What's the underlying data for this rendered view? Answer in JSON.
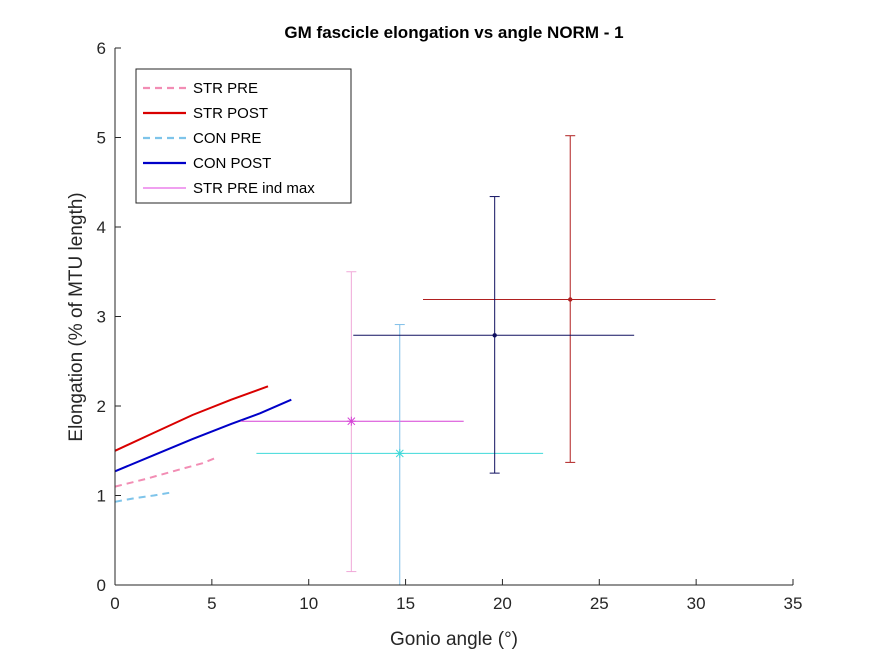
{
  "chart_data": {
    "type": "line",
    "title": "GM fascicle elongation vs angle NORM - 1",
    "xlabel": "Gonio angle (°)",
    "ylabel": "Elongation (% of MTU length)",
    "xlim": [
      0,
      35
    ],
    "ylim": [
      0,
      6
    ],
    "xticks": [
      "0",
      "5",
      "10",
      "15",
      "20",
      "25",
      "30",
      "35"
    ],
    "yticks": [
      "0",
      "1",
      "2",
      "3",
      "4",
      "5",
      "6"
    ],
    "grid": false,
    "legend_position": "top-left",
    "series": [
      {
        "name": "STR PRE",
        "color": "#f28db4",
        "dash": "dashed",
        "x": [
          0,
          1.5,
          3,
          4.5,
          5.2
        ],
        "y": [
          1.1,
          1.18,
          1.27,
          1.36,
          1.42
        ]
      },
      {
        "name": "STR POST",
        "color": "#d90000",
        "dash": "solid",
        "x": [
          0,
          2,
          4,
          6,
          7.9
        ],
        "y": [
          1.5,
          1.7,
          1.9,
          2.07,
          2.22
        ]
      },
      {
        "name": "CON PRE",
        "color": "#7ec4ea",
        "dash": "dashed",
        "x": [
          0,
          1,
          2,
          2.8
        ],
        "y": [
          0.93,
          0.97,
          1.0,
          1.03
        ]
      },
      {
        "name": "CON POST",
        "color": "#0000c8",
        "dash": "solid",
        "x": [
          0,
          2,
          4,
          6,
          7.5,
          9.1
        ],
        "y": [
          1.27,
          1.45,
          1.63,
          1.8,
          1.92,
          2.07
        ]
      },
      {
        "name": "STR PRE ind max",
        "color": "#e040e0",
        "dash": "solid",
        "x": [],
        "y": []
      }
    ],
    "error_points": [
      {
        "color": "#f0a8d8",
        "marker": "none",
        "x": 12.2,
        "y": 1.83,
        "y_low": 0.15,
        "y_high": 3.5,
        "x_low": 12.2,
        "x_high": 12.2
      },
      {
        "color": "#d540d5",
        "marker": "asterisk",
        "x": 12.2,
        "y": 1.83,
        "y_low": 1.83,
        "y_high": 1.83,
        "x_low": 6.5,
        "x_high": 18.0
      },
      {
        "color": "#7fbfe8",
        "marker": "none",
        "x": 14.7,
        "y": 1.47,
        "y_low": 0.0,
        "y_high": 2.91,
        "x_low": 14.7,
        "x_high": 14.7
      },
      {
        "color": "#3fd9d9",
        "marker": "asterisk",
        "x": 14.7,
        "y": 1.47,
        "y_low": 1.47,
        "y_high": 1.47,
        "x_low": 7.3,
        "x_high": 22.1
      },
      {
        "color": "#b02020",
        "marker": "dot",
        "x": 23.5,
        "y": 3.19,
        "y_low": 1.37,
        "y_high": 5.02,
        "x_low": 15.9,
        "x_high": 31.0
      },
      {
        "color": "#101060",
        "marker": "dot",
        "x": 19.6,
        "y": 2.79,
        "y_low": 1.25,
        "y_high": 4.34,
        "x_low": 12.3,
        "x_high": 26.8
      }
    ]
  }
}
